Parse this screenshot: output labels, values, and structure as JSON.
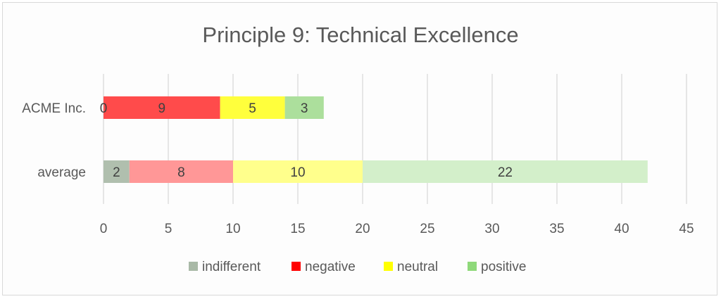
{
  "chart_data": {
    "type": "bar",
    "orientation": "horizontal",
    "stacked": true,
    "title": "Principle 9: Technical Excellence",
    "categories": [
      "ACME Inc.",
      "average"
    ],
    "series": [
      {
        "name": "indifferent",
        "values": [
          0,
          2
        ],
        "colors": [
          "#b0bfae",
          "#b0bfae"
        ]
      },
      {
        "name": "negative",
        "values": [
          9,
          8
        ],
        "colors": [
          "#ff4b4b",
          "#ff9797"
        ]
      },
      {
        "name": "neutral",
        "values": [
          5,
          10
        ],
        "colors": [
          "#ffff3c",
          "#ffff8c"
        ]
      },
      {
        "name": "positive",
        "values": [
          3,
          22
        ],
        "colors": [
          "#acdf9c",
          "#d3efca"
        ]
      }
    ],
    "legend_colors": [
      "#a9b9a7",
      "#ff0000",
      "#ffff00",
      "#8fd97a"
    ],
    "xticks": [
      "0",
      "5",
      "10",
      "15",
      "20",
      "25",
      "30",
      "35",
      "40",
      "45"
    ],
    "xlim": [
      0,
      45
    ],
    "grid": true,
    "legend_position": "bottom",
    "xlabel": "",
    "ylabel": ""
  }
}
